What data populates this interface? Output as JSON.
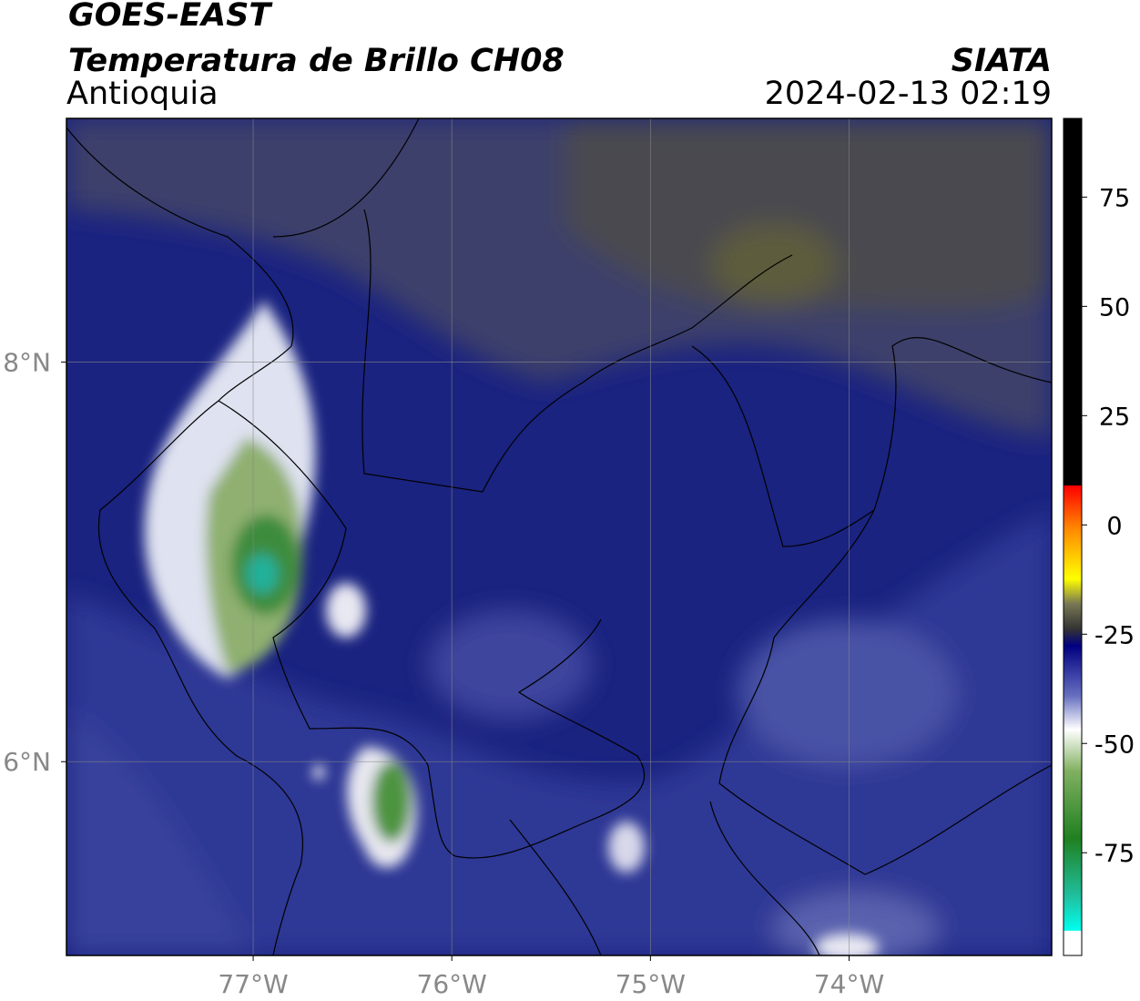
{
  "header": {
    "title": "GOES-EAST",
    "subtitle": "Temperatura de Brillo CH08",
    "region": "Antioquia",
    "source": "SIATA",
    "datetime": "2024-02-13 02:19"
  },
  "map": {
    "xlim": [
      -77.94,
      -72.98
    ],
    "ylim": [
      5.03,
      9.22
    ],
    "xticks": [
      {
        "value": -77,
        "label": "77°W"
      },
      {
        "value": -76,
        "label": "76°W"
      },
      {
        "value": -75,
        "label": "75°W"
      },
      {
        "value": -74,
        "label": "74°W"
      }
    ],
    "yticks": [
      {
        "value": 8,
        "label": "8°N"
      },
      {
        "value": 6,
        "label": "6°N"
      }
    ]
  },
  "colorbar": {
    "lim": [
      -98.5,
      93
    ],
    "ticks": [
      75,
      50,
      25,
      0,
      -25,
      -50,
      -75
    ]
  }
}
